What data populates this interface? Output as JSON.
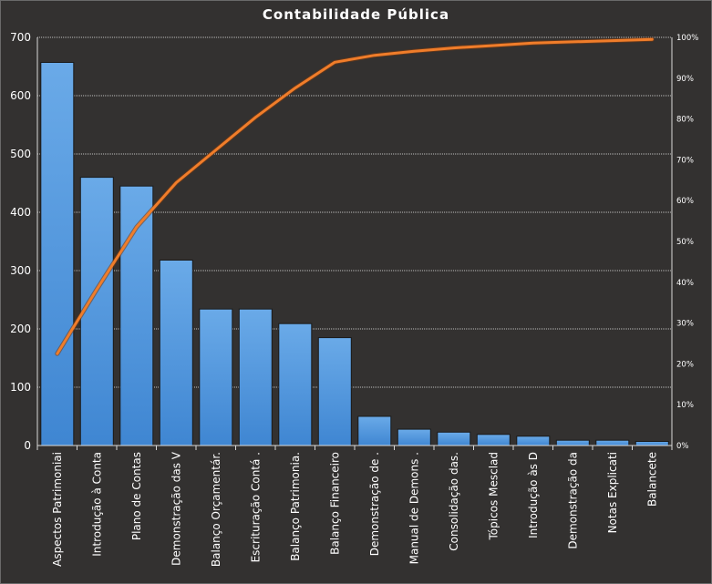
{
  "chart_data": {
    "type": "bar",
    "title": "Contabilidade  Pública",
    "categories": [
      "Aspectos Patrimoniai",
      "Introdução à Conta",
      "Plano de Contas",
      "Demonstração das V",
      "Balanço Orçamentár.",
      "Escrituração Contá .",
      "Balanço Patrimonia.",
      "Balanço Financeiro",
      "Demonstração de .",
      "Manual de Demons .",
      "Consolidação das.",
      "Tópicos Mesclad",
      "Introdução  às D",
      "Demonstração da",
      "Notas Explicati",
      "Balancete"
    ],
    "series": [
      {
        "type": "bar",
        "values": [
          657,
          460,
          445,
          318,
          234,
          234,
          209,
          185,
          50,
          28,
          23,
          19,
          16,
          9,
          9,
          7
        ]
      },
      {
        "type": "line",
        "axis": "right",
        "values": [
          22.5,
          38.3,
          53.5,
          64.4,
          72.4,
          80.4,
          87.6,
          93.9,
          95.6,
          96.6,
          97.4,
          98.0,
          98.6,
          98.9,
          99.2,
          99.5
        ]
      }
    ],
    "ylim": [
      0,
      700
    ],
    "yticks": [
      "0",
      "100",
      "200",
      "300",
      "400",
      "500",
      "600",
      "700"
    ],
    "y2lim": [
      0,
      100
    ],
    "y2ticks": [
      "0%",
      "10%",
      "20%",
      "30%",
      "40%",
      "50%",
      "60%",
      "70%",
      "80%",
      "90%",
      "100%"
    ],
    "grid": true,
    "colors": {
      "bar": "#4a90d9",
      "bar_top": "#6aaae8",
      "line": "#f07d2a",
      "background": "#333130"
    }
  }
}
